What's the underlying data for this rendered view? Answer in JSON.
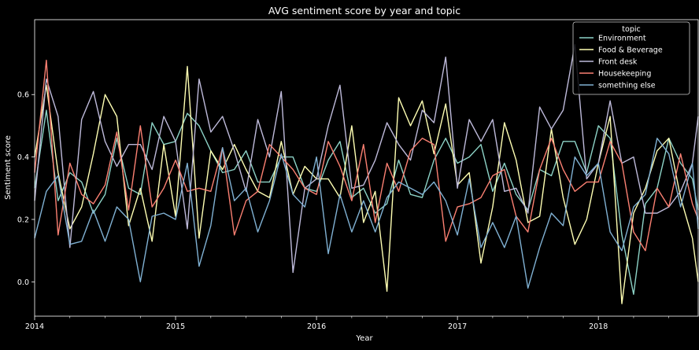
{
  "chart_data": {
    "type": "line",
    "title": "AVG sentiment score by year and topic",
    "xlabel": "Year",
    "ylabel": "Sentiment score",
    "xlim": [
      2014.0,
      2018.7083
    ],
    "ylim": [
      -0.11,
      0.84
    ],
    "x_ticks": [
      2014,
      2015,
      2016,
      2017,
      2018
    ],
    "y_ticks": [
      0.0,
      0.2,
      0.4,
      0.6
    ],
    "grid": false,
    "legend": {
      "title": "topic",
      "placement": "top-right"
    },
    "colors": {
      "background": "#000000",
      "text": "#ffffff",
      "axes": "#ffffff"
    },
    "series": [
      {
        "name": "Environment",
        "color": "#8dd3c7",
        "points": [
          [
            2014.0,
            0.3
          ],
          [
            2014.0833,
            0.55
          ],
          [
            2014.1667,
            0.26
          ],
          [
            2014.25,
            0.35
          ],
          [
            2014.3333,
            0.32
          ],
          [
            2014.4167,
            0.22
          ],
          [
            2014.5,
            0.28
          ],
          [
            2014.5833,
            0.46
          ],
          [
            2014.6667,
            0.3
          ],
          [
            2014.75,
            0.28
          ],
          [
            2014.8333,
            0.51
          ],
          [
            2014.9167,
            0.44
          ],
          [
            2015.0,
            0.45
          ],
          [
            2015.0833,
            0.54
          ],
          [
            2015.1667,
            0.5
          ],
          [
            2015.25,
            0.42
          ],
          [
            2015.3333,
            0.35
          ],
          [
            2015.4167,
            0.36
          ],
          [
            2015.5,
            0.42
          ],
          [
            2015.5833,
            0.32
          ],
          [
            2015.6667,
            0.32
          ],
          [
            2015.75,
            0.4
          ],
          [
            2015.8333,
            0.4
          ],
          [
            2015.9167,
            0.3
          ],
          [
            2016.0,
            0.29
          ],
          [
            2016.0833,
            0.39
          ],
          [
            2016.1667,
            0.45
          ],
          [
            2016.25,
            0.27
          ],
          [
            2016.3333,
            0.3
          ],
          [
            2016.4167,
            0.22
          ],
          [
            2016.5,
            0.25
          ],
          [
            2016.5833,
            0.39
          ],
          [
            2016.6667,
            0.28
          ],
          [
            2016.75,
            0.27
          ],
          [
            2016.8333,
            0.39
          ],
          [
            2016.9167,
            0.46
          ],
          [
            2017.0,
            0.38
          ],
          [
            2017.0833,
            0.4
          ],
          [
            2017.1667,
            0.44
          ],
          [
            2017.25,
            0.29
          ],
          [
            2017.3333,
            0.38
          ],
          [
            2017.4167,
            0.28
          ],
          [
            2017.5,
            0.23
          ],
          [
            2017.5833,
            0.36
          ],
          [
            2017.6667,
            0.34
          ],
          [
            2017.75,
            0.45
          ],
          [
            2017.8333,
            0.45
          ],
          [
            2017.9167,
            0.35
          ],
          [
            2018.0,
            0.5
          ],
          [
            2018.0833,
            0.46
          ],
          [
            2018.1667,
            0.15
          ],
          [
            2018.25,
            -0.04
          ],
          [
            2018.3333,
            0.25
          ],
          [
            2018.4167,
            0.3
          ],
          [
            2018.5,
            0.46
          ],
          [
            2018.5833,
            0.38
          ],
          [
            2018.6667,
            0.33
          ],
          [
            2018.7083,
            0.23
          ]
        ]
      },
      {
        "name": "Food & Beverage",
        "color": "#ffffb3",
        "points": [
          [
            2014.0,
            0.4
          ],
          [
            2014.0833,
            0.63
          ],
          [
            2014.1667,
            0.35
          ],
          [
            2014.25,
            0.17
          ],
          [
            2014.3333,
            0.24
          ],
          [
            2014.4167,
            0.41
          ],
          [
            2014.5,
            0.6
          ],
          [
            2014.5833,
            0.53
          ],
          [
            2014.6667,
            0.18
          ],
          [
            2014.75,
            0.3
          ],
          [
            2014.8333,
            0.13
          ],
          [
            2014.9167,
            0.44
          ],
          [
            2015.0,
            0.21
          ],
          [
            2015.0833,
            0.69
          ],
          [
            2015.1667,
            0.14
          ],
          [
            2015.25,
            0.42
          ],
          [
            2015.3333,
            0.36
          ],
          [
            2015.4167,
            0.44
          ],
          [
            2015.5,
            0.36
          ],
          [
            2015.5833,
            0.29
          ],
          [
            2015.6667,
            0.27
          ],
          [
            2015.75,
            0.45
          ],
          [
            2015.8333,
            0.28
          ],
          [
            2015.9167,
            0.37
          ],
          [
            2016.0,
            0.33
          ],
          [
            2016.0833,
            0.33
          ],
          [
            2016.1667,
            0.27
          ],
          [
            2016.25,
            0.5
          ],
          [
            2016.3333,
            0.19
          ],
          [
            2016.4167,
            0.29
          ],
          [
            2016.5,
            -0.03
          ],
          [
            2016.5833,
            0.59
          ],
          [
            2016.6667,
            0.5
          ],
          [
            2016.75,
            0.58
          ],
          [
            2016.8333,
            0.41
          ],
          [
            2016.9167,
            0.57
          ],
          [
            2017.0,
            0.31
          ],
          [
            2017.0833,
            0.35
          ],
          [
            2017.1667,
            0.06
          ],
          [
            2017.25,
            0.24
          ],
          [
            2017.3333,
            0.51
          ],
          [
            2017.4167,
            0.39
          ],
          [
            2017.5,
            0.19
          ],
          [
            2017.5833,
            0.21
          ],
          [
            2017.6667,
            0.49
          ],
          [
            2017.75,
            0.27
          ],
          [
            2017.8333,
            0.12
          ],
          [
            2017.9167,
            0.2
          ],
          [
            2018.0,
            0.38
          ],
          [
            2018.0833,
            0.53
          ],
          [
            2018.1667,
            -0.07
          ],
          [
            2018.25,
            0.22
          ],
          [
            2018.3333,
            0.3
          ],
          [
            2018.4167,
            0.42
          ],
          [
            2018.5,
            0.46
          ],
          [
            2018.5833,
            0.27
          ],
          [
            2018.6667,
            0.14
          ],
          [
            2018.7083,
            0.0
          ]
        ]
      },
      {
        "name": "Front desk",
        "color": "#bebada",
        "points": [
          [
            2014.0,
            0.26
          ],
          [
            2014.0833,
            0.65
          ],
          [
            2014.1667,
            0.53
          ],
          [
            2014.25,
            0.11
          ],
          [
            2014.3333,
            0.52
          ],
          [
            2014.4167,
            0.61
          ],
          [
            2014.5,
            0.45
          ],
          [
            2014.5833,
            0.37
          ],
          [
            2014.6667,
            0.44
          ],
          [
            2014.75,
            0.44
          ],
          [
            2014.8333,
            0.36
          ],
          [
            2014.9167,
            0.53
          ],
          [
            2015.0,
            0.45
          ],
          [
            2015.0833,
            0.17
          ],
          [
            2015.1667,
            0.65
          ],
          [
            2015.25,
            0.48
          ],
          [
            2015.3333,
            0.53
          ],
          [
            2015.4167,
            0.42
          ],
          [
            2015.5,
            0.29
          ],
          [
            2015.5833,
            0.52
          ],
          [
            2015.6667,
            0.4
          ],
          [
            2015.75,
            0.61
          ],
          [
            2015.8333,
            0.03
          ],
          [
            2015.9167,
            0.3
          ],
          [
            2016.0,
            0.33
          ],
          [
            2016.0833,
            0.5
          ],
          [
            2016.1667,
            0.63
          ],
          [
            2016.25,
            0.3
          ],
          [
            2016.3333,
            0.31
          ],
          [
            2016.4167,
            0.39
          ],
          [
            2016.5,
            0.51
          ],
          [
            2016.5833,
            0.44
          ],
          [
            2016.6667,
            0.39
          ],
          [
            2016.75,
            0.55
          ],
          [
            2016.8333,
            0.51
          ],
          [
            2016.9167,
            0.72
          ],
          [
            2017.0,
            0.3
          ],
          [
            2017.0833,
            0.52
          ],
          [
            2017.1667,
            0.45
          ],
          [
            2017.25,
            0.52
          ],
          [
            2017.3333,
            0.29
          ],
          [
            2017.4167,
            0.3
          ],
          [
            2017.5,
            0.22
          ],
          [
            2017.5833,
            0.56
          ],
          [
            2017.6667,
            0.49
          ],
          [
            2017.75,
            0.55
          ],
          [
            2017.8333,
            0.76
          ],
          [
            2017.9167,
            0.33
          ],
          [
            2018.0,
            0.38
          ],
          [
            2018.0833,
            0.58
          ],
          [
            2018.1667,
            0.38
          ],
          [
            2018.25,
            0.4
          ],
          [
            2018.3333,
            0.22
          ],
          [
            2018.4167,
            0.22
          ],
          [
            2018.5,
            0.24
          ],
          [
            2018.5833,
            0.29
          ],
          [
            2018.6667,
            0.38
          ],
          [
            2018.7083,
            0.53
          ]
        ]
      },
      {
        "name": "Housekeeping",
        "color": "#fb8072",
        "points": [
          [
            2014.0,
            0.35
          ],
          [
            2014.0833,
            0.71
          ],
          [
            2014.1667,
            0.15
          ],
          [
            2014.25,
            0.38
          ],
          [
            2014.3333,
            0.28
          ],
          [
            2014.4167,
            0.25
          ],
          [
            2014.5,
            0.31
          ],
          [
            2014.5833,
            0.48
          ],
          [
            2014.6667,
            0.23
          ],
          [
            2014.75,
            0.5
          ],
          [
            2014.8333,
            0.24
          ],
          [
            2014.9167,
            0.3
          ],
          [
            2015.0,
            0.39
          ],
          [
            2015.0833,
            0.29
          ],
          [
            2015.1667,
            0.3
          ],
          [
            2015.25,
            0.29
          ],
          [
            2015.3333,
            0.43
          ],
          [
            2015.4167,
            0.15
          ],
          [
            2015.5,
            0.26
          ],
          [
            2015.5833,
            0.29
          ],
          [
            2015.6667,
            0.44
          ],
          [
            2015.75,
            0.4
          ],
          [
            2015.8333,
            0.36
          ],
          [
            2015.9167,
            0.3
          ],
          [
            2016.0,
            0.28
          ],
          [
            2016.0833,
            0.45
          ],
          [
            2016.1667,
            0.37
          ],
          [
            2016.25,
            0.26
          ],
          [
            2016.3333,
            0.44
          ],
          [
            2016.4167,
            0.19
          ],
          [
            2016.5,
            0.38
          ],
          [
            2016.5833,
            0.29
          ],
          [
            2016.6667,
            0.42
          ],
          [
            2016.75,
            0.46
          ],
          [
            2016.8333,
            0.44
          ],
          [
            2016.9167,
            0.13
          ],
          [
            2017.0,
            0.24
          ],
          [
            2017.0833,
            0.25
          ],
          [
            2017.1667,
            0.27
          ],
          [
            2017.25,
            0.34
          ],
          [
            2017.3333,
            0.36
          ],
          [
            2017.4167,
            0.21
          ],
          [
            2017.5,
            0.16
          ],
          [
            2017.5833,
            0.36
          ],
          [
            2017.6667,
            0.46
          ],
          [
            2017.75,
            0.36
          ],
          [
            2017.8333,
            0.29
          ],
          [
            2017.9167,
            0.32
          ],
          [
            2018.0,
            0.32
          ],
          [
            2018.0833,
            0.45
          ],
          [
            2018.1667,
            0.38
          ],
          [
            2018.25,
            0.16
          ],
          [
            2018.3333,
            0.1
          ],
          [
            2018.4167,
            0.3
          ],
          [
            2018.5,
            0.24
          ],
          [
            2018.5833,
            0.41
          ],
          [
            2018.6667,
            0.25
          ],
          [
            2018.7083,
            0.2
          ]
        ]
      },
      {
        "name": "something else",
        "color": "#80b1d3",
        "points": [
          [
            2014.0,
            0.14
          ],
          [
            2014.0833,
            0.29
          ],
          [
            2014.1667,
            0.34
          ],
          [
            2014.25,
            0.12
          ],
          [
            2014.3333,
            0.13
          ],
          [
            2014.4167,
            0.23
          ],
          [
            2014.5,
            0.13
          ],
          [
            2014.5833,
            0.24
          ],
          [
            2014.6667,
            0.2
          ],
          [
            2014.75,
            0.0
          ],
          [
            2014.8333,
            0.21
          ],
          [
            2014.9167,
            0.22
          ],
          [
            2015.0,
            0.2
          ],
          [
            2015.0833,
            0.38
          ],
          [
            2015.1667,
            0.05
          ],
          [
            2015.25,
            0.18
          ],
          [
            2015.3333,
            0.43
          ],
          [
            2015.4167,
            0.26
          ],
          [
            2015.5,
            0.3
          ],
          [
            2015.5833,
            0.16
          ],
          [
            2015.6667,
            0.26
          ],
          [
            2015.75,
            0.41
          ],
          [
            2015.8333,
            0.28
          ],
          [
            2015.9167,
            0.24
          ],
          [
            2016.0,
            0.4
          ],
          [
            2016.0833,
            0.09
          ],
          [
            2016.1667,
            0.28
          ],
          [
            2016.25,
            0.16
          ],
          [
            2016.3333,
            0.26
          ],
          [
            2016.4167,
            0.16
          ],
          [
            2016.5,
            0.27
          ],
          [
            2016.5833,
            0.32
          ],
          [
            2016.6667,
            0.3
          ],
          [
            2016.75,
            0.28
          ],
          [
            2016.8333,
            0.32
          ],
          [
            2016.9167,
            0.26
          ],
          [
            2017.0,
            0.15
          ],
          [
            2017.0833,
            0.33
          ],
          [
            2017.1667,
            0.11
          ],
          [
            2017.25,
            0.19
          ],
          [
            2017.3333,
            0.11
          ],
          [
            2017.4167,
            0.21
          ],
          [
            2017.5,
            -0.02
          ],
          [
            2017.5833,
            0.11
          ],
          [
            2017.6667,
            0.22
          ],
          [
            2017.75,
            0.18
          ],
          [
            2017.8333,
            0.4
          ],
          [
            2017.9167,
            0.34
          ],
          [
            2018.0,
            0.38
          ],
          [
            2018.0833,
            0.16
          ],
          [
            2018.1667,
            0.1
          ],
          [
            2018.25,
            0.24
          ],
          [
            2018.3333,
            0.28
          ],
          [
            2018.4167,
            0.46
          ],
          [
            2018.5,
            0.41
          ],
          [
            2018.5833,
            0.24
          ],
          [
            2018.6667,
            0.38
          ],
          [
            2018.7083,
            0.17
          ]
        ]
      }
    ]
  }
}
